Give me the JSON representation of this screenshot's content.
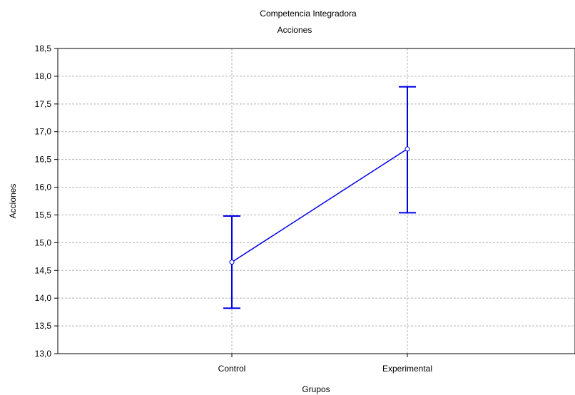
{
  "chart_data": {
    "type": "line",
    "title": "Competencia Integradora",
    "subtitle": "Acciones",
    "xlabel": "Grupos",
    "ylabel": "Acciones",
    "categories": [
      "Control",
      "Experimental"
    ],
    "series": [
      {
        "values": [
          14.65,
          16.69
        ],
        "lower": [
          13.82,
          15.54
        ],
        "upper": [
          15.48,
          17.81
        ]
      }
    ],
    "ylim": [
      13.0,
      18.5
    ],
    "yticks": [
      "13,0",
      "13,5",
      "14,0",
      "14,5",
      "15,0",
      "15,5",
      "16,0",
      "16,5",
      "17,0",
      "17,5",
      "18,0",
      "18,5"
    ],
    "grid": true,
    "legend": "none",
    "colors": {
      "series": "#0000e6",
      "grid": "#b4b4b4",
      "axis": "#000000"
    }
  }
}
